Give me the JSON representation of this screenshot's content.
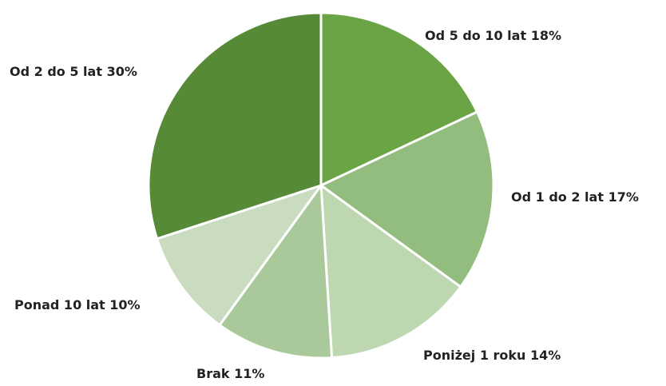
{
  "chart_data": {
    "type": "pie",
    "categories": [
      "Od 5 do 10 lat",
      "Od 1 do 2 lat",
      "Poniżej 1 roku",
      "Brak",
      "Ponad 10 lat",
      "Od 2 do 5 lat"
    ],
    "values": [
      18,
      17,
      14,
      11,
      10,
      30
    ],
    "value_labels": [
      "18%",
      "17%",
      "14%",
      "11%",
      "10%",
      "30%"
    ],
    "colors": [
      "#6aa444",
      "#93bd7e",
      "#bdd7b0",
      "#a9c99b",
      "#cadcbf",
      "#578a37"
    ]
  }
}
